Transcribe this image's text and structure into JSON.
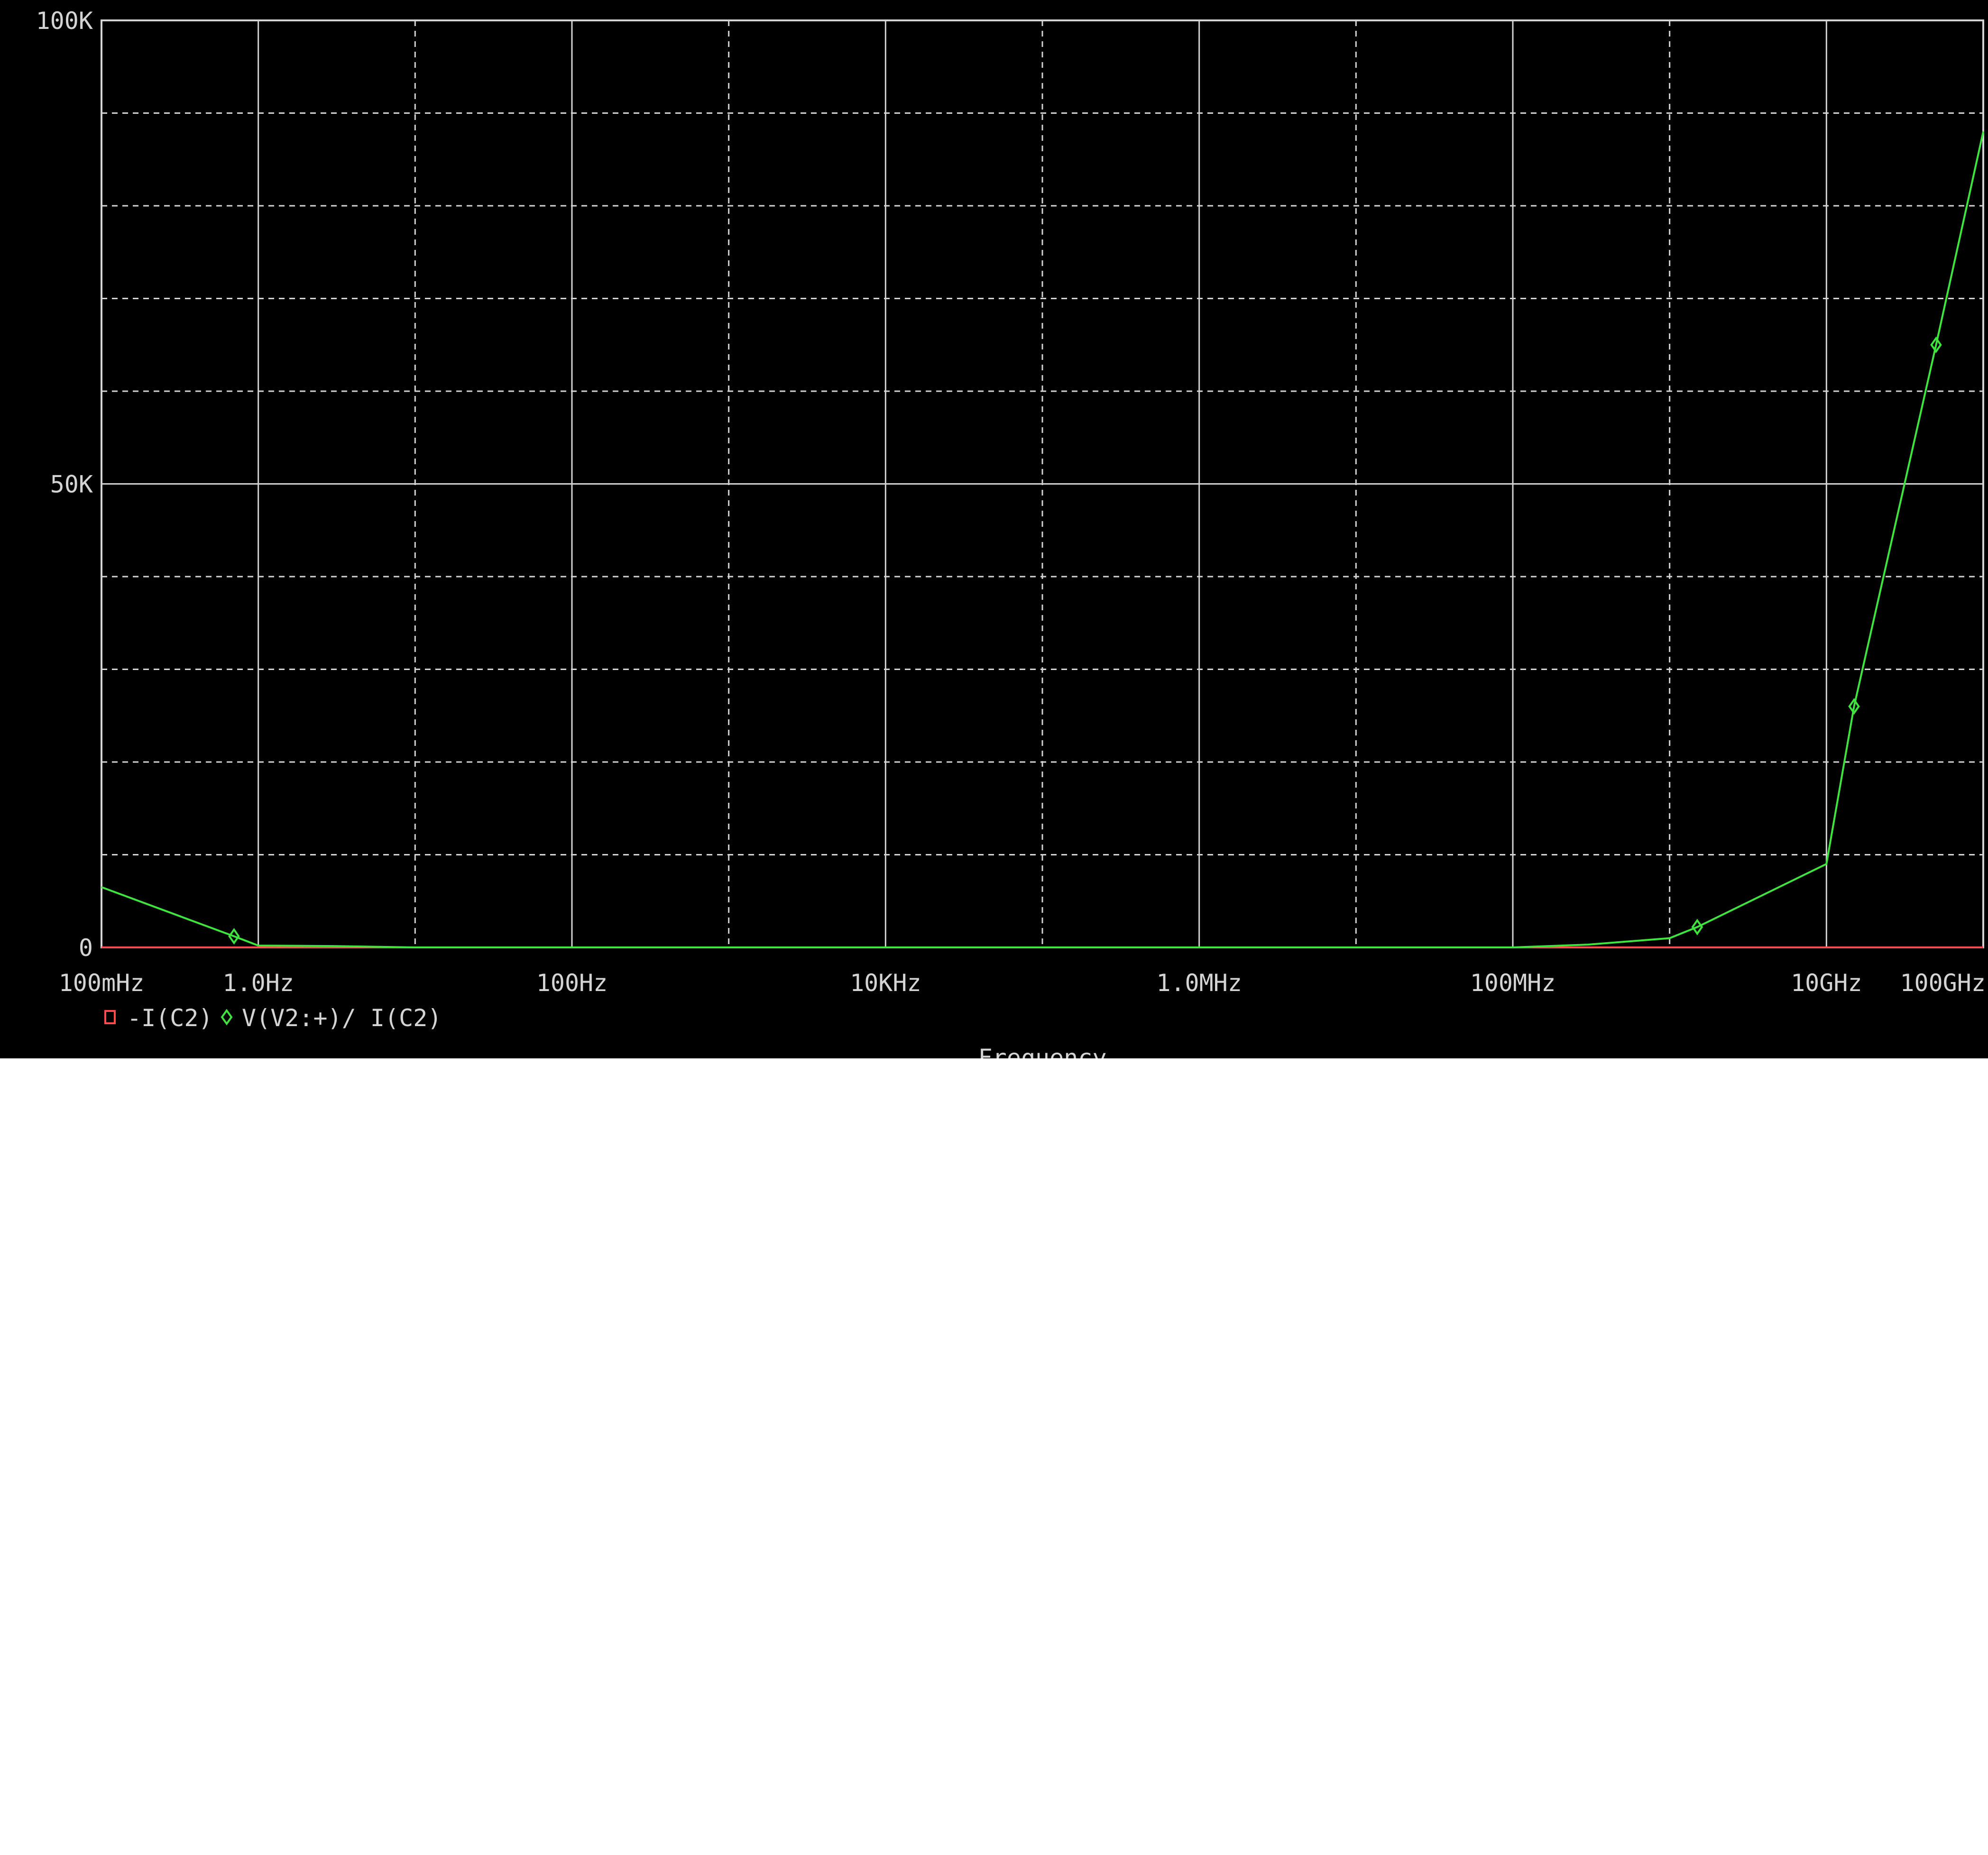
{
  "chart_data": {
    "type": "line",
    "title": "",
    "xlabel": "Frequency",
    "ylabel": "",
    "x_scale": "log",
    "x_unit": "Hz",
    "xlim": [
      0.1,
      100000000000
    ],
    "ylim": [
      0,
      100000
    ],
    "grid": true,
    "legend_position": "bottom-left",
    "x_ticks": [
      {
        "value": 0.1,
        "label": "100mHz"
      },
      {
        "value": 1,
        "label": "1.0Hz"
      },
      {
        "value": 100,
        "label": "100Hz"
      },
      {
        "value": 10000,
        "label": "10KHz"
      },
      {
        "value": 1000000,
        "label": "1.0MHz"
      },
      {
        "value": 100000000,
        "label": "100MHz"
      },
      {
        "value": 10000000000,
        "label": "10GHz"
      },
      {
        "value": 100000000000,
        "label": "100GHz"
      }
    ],
    "y_ticks": [
      {
        "value": 0,
        "label": "0"
      },
      {
        "value": 50000,
        "label": "50K"
      },
      {
        "value": 100000,
        "label": "100K"
      }
    ],
    "series": [
      {
        "name": "-I(C2)",
        "color": "#ff4b4b",
        "marker": "square",
        "x": [
          0.1,
          1,
          100,
          10000,
          1000000,
          100000000,
          10000000000,
          100000000000
        ],
        "values": [
          0,
          0,
          0,
          0,
          0,
          0,
          0,
          0
        ]
      },
      {
        "name": "V(V2:+)/ I(C2)",
        "color": "#3fe43f",
        "marker": "diamond",
        "x": [
          0.1,
          0.7,
          1,
          3,
          10,
          100,
          10000,
          1000000,
          100000000,
          300000000,
          1000000000,
          1500000000,
          10000000000,
          15000000000,
          50000000000,
          100000000000
        ],
        "values": [
          6500,
          1200,
          200,
          150,
          0,
          0,
          0,
          0,
          0,
          300,
          1000,
          2200,
          9000,
          26000,
          65000,
          88000
        ],
        "marker_points": [
          {
            "x": 0.7,
            "y": 1200
          },
          {
            "x": 1500000000,
            "y": 2200
          },
          {
            "x": 15000000000,
            "y": 26000
          },
          {
            "x": 50000000000,
            "y": 65000
          }
        ]
      }
    ]
  },
  "legend": {
    "items": [
      {
        "label": "-I(C2)",
        "color": "#ff4b4b",
        "icon": "square-marker-icon"
      },
      {
        "label": "V(V2:+)/ I(C2)",
        "color": "#3fe43f",
        "icon": "diamond-marker-icon"
      }
    ]
  }
}
